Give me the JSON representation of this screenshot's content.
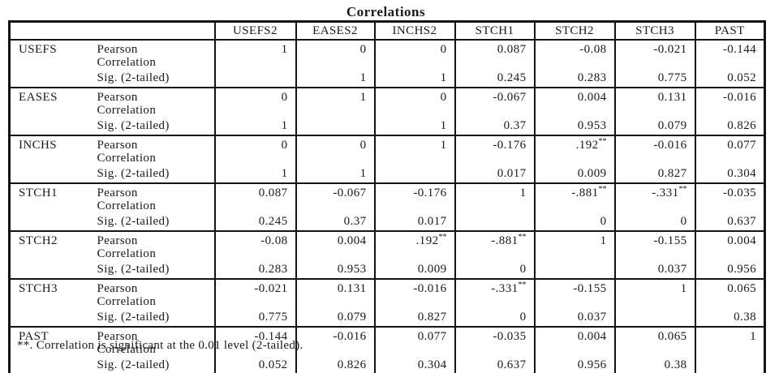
{
  "title": "Correlations",
  "footnote": "**. Correlation is significant at the 0.01 level (2-tailed).",
  "table": {
    "columns": [
      "USEFS2",
      "EASES2",
      "INCHS2",
      "STCH1",
      "STCH2",
      "STCH3",
      "PAST"
    ],
    "row_label_pearson": "Pearson Correlation",
    "row_label_sig": "Sig. (2-tailed)",
    "groups": [
      {
        "name": "USEFS",
        "pearson": [
          "1",
          "0",
          "0",
          "0.087",
          "-0.08",
          "-0.021",
          "-0.144"
        ],
        "sig": [
          "",
          "1",
          "1",
          "0.245",
          "0.283",
          "0.775",
          "0.052"
        ]
      },
      {
        "name": "EASES",
        "pearson": [
          "0",
          "1",
          "0",
          "-0.067",
          "0.004",
          "0.131",
          "-0.016"
        ],
        "sig": [
          "1",
          "",
          "1",
          "0.37",
          "0.953",
          "0.079",
          "0.826"
        ]
      },
      {
        "name": "INCHS",
        "pearson": [
          "0",
          "0",
          "1",
          "-0.176",
          ".192**",
          "-0.016",
          "0.077"
        ],
        "sig": [
          "1",
          "1",
          "",
          "0.017",
          "0.009",
          "0.827",
          "0.304"
        ]
      },
      {
        "name": "STCH1",
        "pearson": [
          "0.087",
          "-0.067",
          "-0.176",
          "1",
          "-.881**",
          "-.331**",
          "-0.035"
        ],
        "sig": [
          "0.245",
          "0.37",
          "0.017",
          "",
          "0",
          "0",
          "0.637"
        ]
      },
      {
        "name": "STCH2",
        "pearson": [
          "-0.08",
          "0.004",
          ".192**",
          "-.881**",
          "1",
          "-0.155",
          "0.004"
        ],
        "sig": [
          "0.283",
          "0.953",
          "0.009",
          "0",
          "",
          "0.037",
          "0.956"
        ]
      },
      {
        "name": "STCH3",
        "pearson": [
          "-0.021",
          "0.131",
          "-0.016",
          "-.331**",
          "-0.155",
          "1",
          "0.065"
        ],
        "sig": [
          "0.775",
          "0.079",
          "0.827",
          "0",
          "0.037",
          "",
          "0.38"
        ]
      },
      {
        "name": "PAST",
        "pearson": [
          "-0.144",
          "-0.016",
          "0.077",
          "-0.035",
          "0.004",
          "0.065",
          "1"
        ],
        "sig": [
          "0.052",
          "0.826",
          "0.304",
          "0.637",
          "0.956",
          "0.38",
          ""
        ]
      }
    ]
  }
}
